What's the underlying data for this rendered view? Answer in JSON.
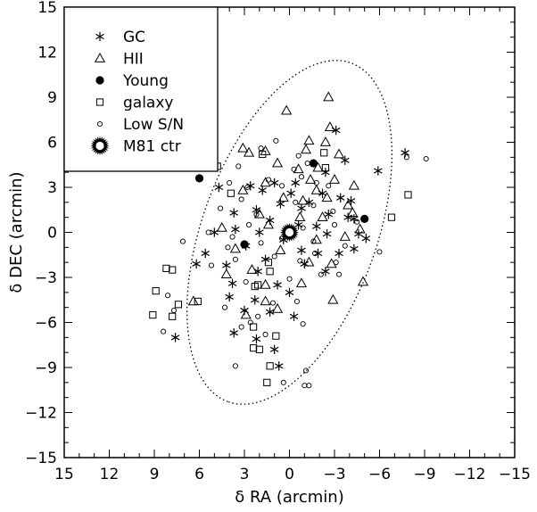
{
  "chart_data": {
    "type": "scatter",
    "xlabel": "δ RA (arcmin)",
    "ylabel": "δ DEC (arcmin)",
    "xlim": [
      15,
      -15
    ],
    "ylim": [
      -15,
      15
    ],
    "x_ticks": [
      "15",
      "12",
      "9",
      "6",
      "3",
      "0",
      "−3",
      "−6",
      "−9",
      "−12",
      "−15"
    ],
    "y_ticks": [
      "15",
      "12",
      "9",
      "6",
      "3",
      "0",
      "−3",
      "−6",
      "−9",
      "−12",
      "−15"
    ],
    "legend_position": "top-left",
    "ellipse": {
      "center": [
        0,
        0
      ],
      "semi_major": 12,
      "semi_minor": 5.8,
      "angle_deg": 110
    },
    "series": [
      {
        "name": "GC",
        "marker": "asterisk",
        "points": [
          [
            -3.1,
            6.8
          ],
          [
            -5.9,
            4.1
          ],
          [
            -7.7,
            5.3
          ],
          [
            -3.7,
            4.8
          ],
          [
            -2.4,
            4.0
          ],
          [
            -0.4,
            3.3
          ],
          [
            1.0,
            3.3
          ],
          [
            2.6,
            3.1
          ],
          [
            4.7,
            3.0
          ],
          [
            1.8,
            2.8
          ],
          [
            -0.1,
            2.6
          ],
          [
            -2.2,
            2.6
          ],
          [
            -3.4,
            2.3
          ],
          [
            -1.3,
            2.0
          ],
          [
            -4.1,
            2.1
          ],
          [
            0.6,
            1.9
          ],
          [
            2.2,
            1.5
          ],
          [
            3.7,
            1.3
          ],
          [
            -0.8,
            1.6
          ],
          [
            -2.6,
            1.2
          ],
          [
            -3.9,
            1.0
          ],
          [
            -4.3,
            0.9
          ],
          [
            1.3,
            0.8
          ],
          [
            -0.6,
            0.5
          ],
          [
            -1.8,
            0.4
          ],
          [
            5.0,
            0.0
          ],
          [
            3.6,
            0.2
          ],
          [
            2.0,
            0.0
          ],
          [
            -2.5,
            -0.1
          ],
          [
            -4.6,
            -0.1
          ],
          [
            -5.1,
            -0.4
          ],
          [
            0.4,
            -0.5
          ],
          [
            2.9,
            -0.9
          ],
          [
            5.6,
            -1.4
          ],
          [
            -0.8,
            -1.2
          ],
          [
            -1.9,
            -1.4
          ],
          [
            -3.3,
            -1.4
          ],
          [
            -4.3,
            -1.1
          ],
          [
            1.6,
            -1.8
          ],
          [
            6.2,
            -2.1
          ],
          [
            4.2,
            -2.2
          ],
          [
            2.1,
            -2.6
          ],
          [
            -1.0,
            -2.1
          ],
          [
            -2.4,
            -2.6
          ],
          [
            3.8,
            -3.4
          ],
          [
            0.8,
            -3.5
          ],
          [
            4.0,
            -4.3
          ],
          [
            2.3,
            -4.5
          ],
          [
            0.0,
            -4.0
          ],
          [
            3.0,
            -5.2
          ],
          [
            1.3,
            -5.3
          ],
          [
            -0.3,
            -5.6
          ],
          [
            3.7,
            -6.7
          ],
          [
            2.2,
            -7.1
          ],
          [
            1.0,
            -7.8
          ],
          [
            0.7,
            -8.9
          ],
          [
            7.6,
            -7.0
          ]
        ],
        "values": []
      },
      {
        "name": "HII",
        "marker": "triangle",
        "points": [
          [
            -2.6,
            9.0
          ],
          [
            0.2,
            8.1
          ],
          [
            -2.7,
            7.0
          ],
          [
            3.1,
            5.6
          ],
          [
            2.7,
            5.3
          ],
          [
            1.6,
            5.4
          ],
          [
            -1.3,
            6.1
          ],
          [
            -2.4,
            6.0
          ],
          [
            -3.3,
            5.2
          ],
          [
            -1.1,
            5.5
          ],
          [
            0.8,
            4.6
          ],
          [
            -1.9,
            4.3
          ],
          [
            -0.6,
            4.2
          ],
          [
            -1.4,
            3.5
          ],
          [
            -3.0,
            3.5
          ],
          [
            -4.3,
            3.1
          ],
          [
            1.6,
            3.3
          ],
          [
            3.1,
            2.8
          ],
          [
            -1.8,
            2.8
          ],
          [
            -2.5,
            2.3
          ],
          [
            0.4,
            2.3
          ],
          [
            -0.9,
            2.1
          ],
          [
            2.0,
            1.2
          ],
          [
            -0.7,
            1.0
          ],
          [
            -2.2,
            1.0
          ],
          [
            -3.9,
            1.8
          ],
          [
            -4.2,
            1.3
          ],
          [
            -4.7,
            0.2
          ],
          [
            1.4,
            0.5
          ],
          [
            4.5,
            0.3
          ],
          [
            -1.8,
            -0.5
          ],
          [
            -3.7,
            -0.3
          ],
          [
            0.6,
            -1.2
          ],
          [
            3.6,
            -1.1
          ],
          [
            -1.3,
            -2.0
          ],
          [
            -2.8,
            -2.1
          ],
          [
            2.5,
            -2.5
          ],
          [
            4.2,
            -2.8
          ],
          [
            -0.8,
            -3.4
          ],
          [
            1.6,
            -3.5
          ],
          [
            -2.9,
            -4.5
          ],
          [
            2.9,
            -5.5
          ],
          [
            1.6,
            -4.6
          ],
          [
            0.8,
            -5.1
          ],
          [
            6.4,
            -4.6
          ],
          [
            -4.9,
            -3.3
          ]
        ],
        "values": []
      },
      {
        "name": "Young",
        "marker": "filled-circle",
        "points": [
          [
            6.0,
            3.6
          ],
          [
            -1.6,
            4.6
          ],
          [
            -5.0,
            0.9
          ],
          [
            3.0,
            -0.8
          ]
        ],
        "values": []
      },
      {
        "name": "galaxy",
        "marker": "square",
        "points": [
          [
            9.1,
            -5.5
          ],
          [
            8.9,
            -3.9
          ],
          [
            8.2,
            -2.4
          ],
          [
            7.8,
            -2.5
          ],
          [
            7.8,
            -5.6
          ],
          [
            7.4,
            -4.8
          ],
          [
            6.1,
            -4.6
          ],
          [
            4.8,
            4.4
          ],
          [
            3.9,
            2.6
          ],
          [
            2.4,
            -6.3
          ],
          [
            2.4,
            -7.7
          ],
          [
            2.0,
            -7.8
          ],
          [
            2.1,
            -3.5
          ],
          [
            2.3,
            -3.6
          ],
          [
            1.4,
            -2.0
          ],
          [
            1.3,
            -2.6
          ],
          [
            0.9,
            -6.9
          ],
          [
            1.3,
            -8.9
          ],
          [
            1.5,
            -10.0
          ],
          [
            -2.4,
            4.3
          ],
          [
            -2.3,
            5.3
          ],
          [
            -6.8,
            1.0
          ],
          [
            -7.9,
            2.5
          ],
          [
            1.8,
            5.2
          ]
        ],
        "values": []
      },
      {
        "name": "Low S/N",
        "marker": "open-circle",
        "points": [
          [
            -9.1,
            4.9
          ],
          [
            -7.8,
            5.0
          ],
          [
            -1.2,
            4.6
          ],
          [
            -0.6,
            5.1
          ],
          [
            0.9,
            6.1
          ],
          [
            1.9,
            5.6
          ],
          [
            3.4,
            4.4
          ],
          [
            4.0,
            3.3
          ],
          [
            2.8,
            3.0
          ],
          [
            1.4,
            3.5
          ],
          [
            -0.3,
            4.2
          ],
          [
            -0.8,
            3.7
          ],
          [
            -1.8,
            3.3
          ],
          [
            -2.6,
            3.1
          ],
          [
            0.5,
            3.1
          ],
          [
            3.2,
            2.2
          ],
          [
            2.2,
            1.2
          ],
          [
            4.6,
            1.6
          ],
          [
            -0.4,
            2.0
          ],
          [
            -1.6,
            1.8
          ],
          [
            -2.9,
            1.4
          ],
          [
            -3.0,
            0.5
          ],
          [
            -0.9,
            0.3
          ],
          [
            2.7,
            0.5
          ],
          [
            5.4,
            0.0
          ],
          [
            3.8,
            -0.3
          ],
          [
            -1.6,
            -0.6
          ],
          [
            -3.7,
            -0.9
          ],
          [
            0.5,
            -0.4
          ],
          [
            1.9,
            -0.7
          ],
          [
            4.1,
            -1.0
          ],
          [
            -2.1,
            -2.8
          ],
          [
            -0.7,
            -1.9
          ],
          [
            -1.7,
            -1.4
          ],
          [
            1.0,
            -1.6
          ],
          [
            3.6,
            -1.8
          ],
          [
            5.2,
            -2.2
          ],
          [
            2.9,
            -3.3
          ],
          [
            -3.1,
            -2.0
          ],
          [
            0.0,
            -3.1
          ],
          [
            4.3,
            -5.0
          ],
          [
            2.1,
            -5.6
          ],
          [
            1.1,
            -4.7
          ],
          [
            -0.5,
            -4.6
          ],
          [
            -0.9,
            -6.1
          ],
          [
            3.2,
            -6.3
          ],
          [
            1.6,
            -6.8
          ],
          [
            2.6,
            -6.0
          ],
          [
            3.6,
            -8.9
          ],
          [
            -1.1,
            -9.2
          ],
          [
            -1.0,
            -10.2
          ],
          [
            -1.3,
            -10.2
          ],
          [
            0.4,
            -10.0
          ],
          [
            8.4,
            -6.6
          ],
          [
            7.7,
            -5.2
          ],
          [
            7.1,
            -0.6
          ],
          [
            8.1,
            -4.2
          ],
          [
            -4.5,
            0.7
          ],
          [
            -6.0,
            -1.3
          ],
          [
            -3.3,
            -2.8
          ]
        ],
        "values": []
      },
      {
        "name": "M81 ctr",
        "marker": "starburst",
        "points": [
          [
            0,
            0
          ]
        ],
        "values": []
      }
    ]
  }
}
